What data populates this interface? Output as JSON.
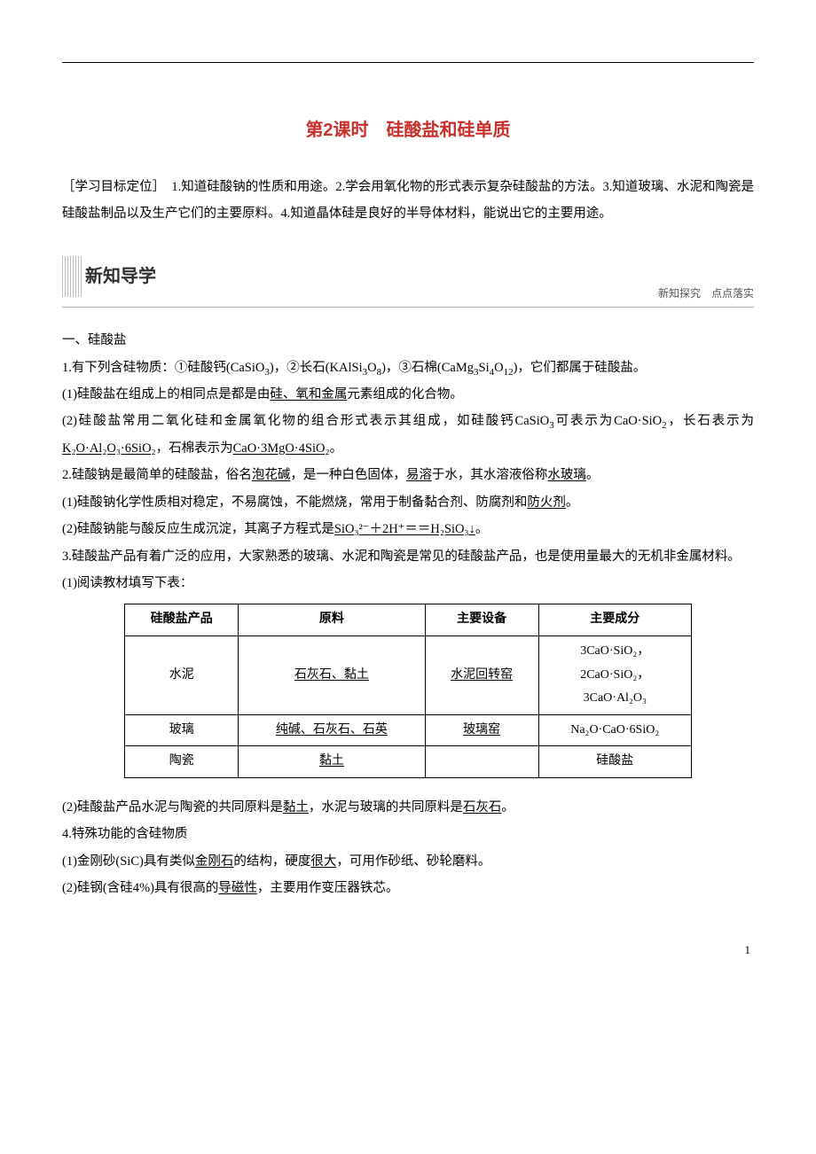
{
  "title": "第2课时　硅酸盐和硅单质",
  "objectives": "［学习目标定位］　1.知道硅酸钠的性质和用途。2.学会用氧化物的形式表示复杂硅酸盐的方法。3.知道玻璃、水泥和陶瓷是硅酸盐制品以及生产它们的主要原料。4.知道晶体硅是良好的半导体材料，能说出它的主要用途。",
  "sectionHeader": {
    "title": "新知导学",
    "sub": "新知探究　点点落实"
  },
  "h1": "一、硅酸盐",
  "p1a": "1.有下列含硅物质：①硅酸钙(CaSiO",
  "p1b": ")，②长石(KAlSi",
  "p1c": ")，③石棉(CaMg",
  "p1d": "Si",
  "p1e": ")，它们都属于硅酸盐。",
  "p11a": "(1)硅酸盐在组成上的相同点是都是由",
  "p11u": "硅、氧和金属",
  "p11b": "元素组成的化合物。",
  "p12a": "(2)硅酸盐常用二氧化硅和金属氧化物的组合形式表示其组成，如硅酸钙CaSiO",
  "p12b": "可表示为CaO·SiO",
  "p12c": "，长石表示为",
  "p12u1": "K₂O·Al₂O₃·6SiO₂",
  "p12d": "，石棉表示为",
  "p12u2": "CaO·3MgO·4SiO₂",
  "p12e": "。",
  "p2a": "2.硅酸钠是最简单的硅酸盐，俗名",
  "p2u1": "泡花碱",
  "p2b": "，是一种白色固体，",
  "p2u2": "易溶",
  "p2c": "于水，其水溶液俗称",
  "p2u3": "水玻璃",
  "p2d": "。",
  "p21a": "(1)硅酸钠化学性质相对稳定，不易腐蚀，不能燃烧，常用于制备黏合剂、防腐剂和",
  "p21u": "防火剂",
  "p21b": "。",
  "p22a": "(2)硅酸钠能与酸反应生成沉淀，其离子方程式是",
  "p22u": "SiO₃²⁻＋2H⁺＝＝H₂SiO₃↓",
  "p22b": "。",
  "p3": "3.硅酸盐产品有着广泛的应用，大家熟悉的玻璃、水泥和陶瓷是常见的硅酸盐产品，也是使用量最大的无机非金属材料。",
  "p31": "(1)阅读教材填写下表：",
  "table": {
    "headers": [
      "硅酸盐产品",
      "原料",
      "主要设备",
      "主要成分"
    ],
    "rows": [
      {
        "c1": "水泥",
        "c2": "石灰石、黏土",
        "c3": "水泥回转窑",
        "c4": "3CaO·SiO₂，\n2CaO·SiO₂，\n3CaO·Al₂O₃",
        "u2": true,
        "u3": true
      },
      {
        "c1": "玻璃",
        "c2": "纯碱、石灰石、石英",
        "c3": "玻璃窑",
        "c4": "Na₂O·CaO·6SiO₂",
        "u2": true,
        "u3": true
      },
      {
        "c1": "陶瓷",
        "c2": "黏土",
        "c3": "",
        "c4": "硅酸盐",
        "u2": true,
        "u3": false
      }
    ]
  },
  "p32a": "(2)硅酸盐产品水泥与陶瓷的共同原料是",
  "p32u1": "黏土",
  "p32b": "，水泥与玻璃的共同原料是",
  "p32u2": "石灰石",
  "p32c": "。",
  "p4": "4.特殊功能的含硅物质",
  "p41a": "(1)金刚砂(SiC)具有类似",
  "p41u1": "金刚石",
  "p41b": "的结构，硬度",
  "p41u2": "很大",
  "p41c": "，可用作砂纸、砂轮磨料。",
  "p42a": "(2)硅钢(含硅4%)具有很高的",
  "p42u": "导磁性",
  "p42b": "，主要用作变压器铁芯。",
  "pageNum": "1"
}
